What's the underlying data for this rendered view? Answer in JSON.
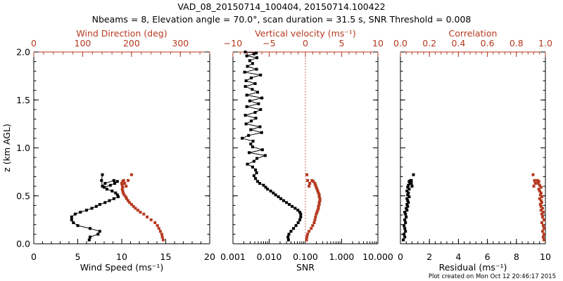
{
  "figure": {
    "title_line1": "VAD_08_20150714_100404, 20150714.100422",
    "title_line2": "Nbeams = 8, Elevation angle = 70.0°, scan duration = 31.5 s, SNR Threshold = 0.008",
    "footer": "Plot created on Mon Oct 12 20:46:17 2015"
  },
  "colors": {
    "primary": "#000000",
    "secondary": "#b5391f",
    "zero_line": "#c0392b"
  },
  "chart_data": [
    {
      "type": "line",
      "panel": "wind",
      "title": "",
      "ylabel": "z (km AGL)",
      "ylim": [
        0,
        2
      ],
      "yticks": [
        0.0,
        0.5,
        1.0,
        1.5,
        2.0
      ],
      "ytick_labels": [
        "0.0",
        "0.5",
        "1.0",
        "1.5",
        "2.0"
      ],
      "bottom_axis": {
        "label": "Wind Speed (ms⁻¹)",
        "range": [
          0,
          20
        ],
        "ticks": [
          0,
          5,
          10,
          15,
          20
        ],
        "tick_labels": [
          "0",
          "5",
          "10",
          "15",
          "20"
        ],
        "scale": "linear"
      },
      "top_axis": {
        "label": "Wind Direction (deg)",
        "range": [
          0,
          360
        ],
        "ticks": [
          0,
          100,
          200,
          300
        ],
        "tick_labels": [
          "0",
          "100",
          "200",
          "300"
        ],
        "scale": "linear"
      },
      "series": [
        {
          "name": "Wind Speed",
          "axis": "bottom",
          "color": "#000000",
          "connected": true,
          "x": [
            6.3,
            6.4,
            7.3,
            7.5,
            6.4,
            5.0,
            4.5,
            4.3,
            4.3,
            4.7,
            5.3,
            6.0,
            6.6,
            7.1,
            7.5,
            8.1,
            8.6,
            9.1,
            9.6,
            9.5,
            9.3,
            8.9,
            8.3,
            8.0,
            8.7,
            9.2,
            9.5,
            9.1,
            8.1,
            7.8,
            7.7,
            7.8
          ],
          "y": [
            0.04,
            0.07,
            0.1,
            0.13,
            0.16,
            0.19,
            0.22,
            0.25,
            0.28,
            0.31,
            0.33,
            0.35,
            0.37,
            0.39,
            0.41,
            0.43,
            0.45,
            0.47,
            0.49,
            0.51,
            0.53,
            0.55,
            0.57,
            0.59,
            0.61,
            0.63,
            0.65,
            0.66,
            0.63,
            0.6,
            0.66,
            0.72
          ]
        },
        {
          "name": "Wind Direction",
          "axis": "top",
          "color": "#b5391f",
          "connected": false,
          "x": [
            265,
            263,
            262,
            259,
            256,
            253,
            248,
            240,
            232,
            225,
            218,
            213,
            208,
            204,
            200,
            196,
            193,
            190,
            188,
            185,
            183,
            182,
            181,
            182,
            181,
            180,
            182,
            184,
            186,
            189,
            193,
            200
          ],
          "y": [
            0.04,
            0.07,
            0.1,
            0.13,
            0.16,
            0.19,
            0.22,
            0.25,
            0.28,
            0.31,
            0.33,
            0.35,
            0.37,
            0.39,
            0.41,
            0.43,
            0.45,
            0.47,
            0.49,
            0.51,
            0.53,
            0.55,
            0.57,
            0.59,
            0.61,
            0.63,
            0.65,
            0.66,
            0.63,
            0.6,
            0.66,
            0.72
          ]
        }
      ]
    },
    {
      "type": "line",
      "panel": "snr",
      "title": "",
      "ylim": [
        0,
        2
      ],
      "yticks": [
        0.0,
        0.5,
        1.0,
        1.5,
        2.0
      ],
      "bottom_axis": {
        "label": "SNR",
        "range": [
          0.001,
          10
        ],
        "ticks": [
          0.001,
          0.01,
          0.1,
          1,
          10
        ],
        "tick_labels": [
          "0.001",
          "0.010",
          "0.100",
          "1.000",
          "10.000"
        ],
        "scale": "log"
      },
      "top_axis": {
        "label": "Vertical velocity (ms⁻¹)",
        "range": [
          -10,
          10
        ],
        "ticks": [
          -10,
          -5,
          0,
          5,
          10
        ],
        "tick_labels": [
          "−10",
          "−5",
          "0",
          "5",
          "10"
        ],
        "scale": "linear"
      },
      "zero_line_top_axis": 0,
      "series": [
        {
          "name": "SNR",
          "axis": "bottom",
          "color": "#000000",
          "connected": true,
          "x": [
            0.034,
            0.033,
            0.035,
            0.04,
            0.047,
            0.055,
            0.063,
            0.07,
            0.074,
            0.074,
            0.07,
            0.062,
            0.052,
            0.043,
            0.036,
            0.03,
            0.025,
            0.021,
            0.018,
            0.015,
            0.013,
            0.011,
            0.009,
            0.008,
            0.007,
            0.0055,
            0.0048,
            0.0042,
            0.0038,
            0.0045,
            0.0042,
            0.0035,
            0.0025,
            0.0038,
            0.0046,
            0.0078,
            0.0028,
            0.0065,
            0.0035,
            0.0031,
            0.0036,
            0.0018,
            0.0027,
            0.0062,
            0.0031,
            0.0056,
            0.0023,
            0.0032,
            0.0043,
            0.0022,
            0.0041,
            0.0058,
            0.0024,
            0.0051,
            0.0029,
            0.0063,
            0.0024,
            0.0048,
            0.0034,
            0.0022,
            0.0041,
            0.0023,
            0.0032,
            0.0058,
            0.0021,
            0.0045,
            0.0025,
            0.0035,
            0.0029,
            0.0046,
            0.0024,
            0.0038,
            0.0044,
            0.0022
          ],
          "y": [
            0.04,
            0.07,
            0.1,
            0.13,
            0.16,
            0.19,
            0.22,
            0.25,
            0.28,
            0.31,
            0.33,
            0.35,
            0.37,
            0.39,
            0.41,
            0.43,
            0.45,
            0.47,
            0.49,
            0.51,
            0.53,
            0.55,
            0.57,
            0.59,
            0.61,
            0.63,
            0.65,
            0.68,
            0.71,
            0.74,
            0.77,
            0.8,
            0.83,
            0.86,
            0.89,
            0.92,
            0.95,
            0.98,
            1.01,
            1.04,
            1.07,
            1.1,
            1.13,
            1.16,
            1.19,
            1.22,
            1.25,
            1.28,
            1.31,
            1.34,
            1.37,
            1.4,
            1.43,
            1.46,
            1.49,
            1.52,
            1.55,
            1.58,
            1.61,
            1.64,
            1.67,
            1.7,
            1.73,
            1.76,
            1.79,
            1.82,
            1.85,
            1.88,
            1.91,
            1.94,
            1.96,
            1.98,
            1.99,
            2.0
          ]
        },
        {
          "name": "Vertical velocity",
          "axis": "top",
          "color": "#b5391f",
          "connected": false,
          "x": [
            0.15,
            0.2,
            0.3,
            0.5,
            0.8,
            1.0,
            1.2,
            1.3,
            1.4,
            1.5,
            1.6,
            1.7,
            1.8,
            1.8,
            1.9,
            1.9,
            2.0,
            2.0,
            1.9,
            1.9,
            1.8,
            1.7,
            1.6,
            1.5,
            1.4,
            1.3,
            1.1,
            0.9,
            0.6,
            0.5,
            0.3,
            0.2
          ],
          "y": [
            0.04,
            0.07,
            0.1,
            0.13,
            0.16,
            0.19,
            0.22,
            0.25,
            0.28,
            0.31,
            0.33,
            0.35,
            0.37,
            0.39,
            0.41,
            0.43,
            0.45,
            0.47,
            0.49,
            0.51,
            0.53,
            0.55,
            0.57,
            0.59,
            0.61,
            0.63,
            0.65,
            0.66,
            0.63,
            0.6,
            0.66,
            0.72
          ]
        }
      ]
    },
    {
      "type": "line",
      "panel": "residual",
      "title": "",
      "ylim": [
        0,
        2
      ],
      "yticks": [
        0.0,
        0.5,
        1.0,
        1.5,
        2.0
      ],
      "bottom_axis": {
        "label": "Residual (ms⁻¹)",
        "range": [
          0,
          10
        ],
        "ticks": [
          0,
          2,
          4,
          6,
          8,
          10
        ],
        "tick_labels": [
          "0",
          "2",
          "4",
          "6",
          "8",
          "10"
        ],
        "scale": "linear"
      },
      "top_axis": {
        "label": "Correlation",
        "range": [
          0,
          1
        ],
        "ticks": [
          0.0,
          0.2,
          0.4,
          0.6,
          0.8,
          1.0
        ],
        "tick_labels": [
          "0.0",
          "0.2",
          "0.4",
          "0.6",
          "0.8",
          "1.0"
        ],
        "scale": "linear"
      },
      "series": [
        {
          "name": "Residual",
          "axis": "bottom",
          "color": "#000000",
          "connected": false,
          "x": [
            0.2,
            0.3,
            0.25,
            0.35,
            0.3,
            0.25,
            0.35,
            0.3,
            0.4,
            0.35,
            0.3,
            0.45,
            0.4,
            0.5,
            0.45,
            0.55,
            0.5,
            0.45,
            0.6,
            0.5,
            0.55,
            0.45,
            0.6,
            0.5,
            0.55,
            0.65,
            0.6,
            0.7,
            0.75,
            0.8,
            0.75,
            0.9
          ],
          "y": [
            0.04,
            0.07,
            0.1,
            0.13,
            0.16,
            0.19,
            0.22,
            0.25,
            0.28,
            0.31,
            0.33,
            0.35,
            0.37,
            0.39,
            0.41,
            0.43,
            0.45,
            0.47,
            0.49,
            0.51,
            0.53,
            0.55,
            0.57,
            0.59,
            0.61,
            0.63,
            0.65,
            0.66,
            0.63,
            0.6,
            0.66,
            0.72
          ]
        },
        {
          "name": "Correlation",
          "axis": "top",
          "color": "#b5391f",
          "connected": false,
          "x": [
            0.99,
            0.985,
            0.99,
            0.98,
            0.99,
            0.985,
            0.975,
            0.99,
            0.98,
            0.975,
            0.985,
            0.97,
            0.98,
            0.97,
            0.965,
            0.975,
            0.97,
            0.96,
            0.975,
            0.965,
            0.97,
            0.96,
            0.955,
            0.97,
            0.96,
            0.95,
            0.955,
            0.945,
            0.93,
            0.92,
            0.925,
            0.915
          ],
          "y": [
            0.04,
            0.07,
            0.1,
            0.13,
            0.16,
            0.19,
            0.22,
            0.25,
            0.28,
            0.31,
            0.33,
            0.35,
            0.37,
            0.39,
            0.41,
            0.43,
            0.45,
            0.47,
            0.49,
            0.51,
            0.53,
            0.55,
            0.57,
            0.59,
            0.61,
            0.63,
            0.65,
            0.66,
            0.63,
            0.6,
            0.66,
            0.72
          ]
        }
      ]
    }
  ]
}
